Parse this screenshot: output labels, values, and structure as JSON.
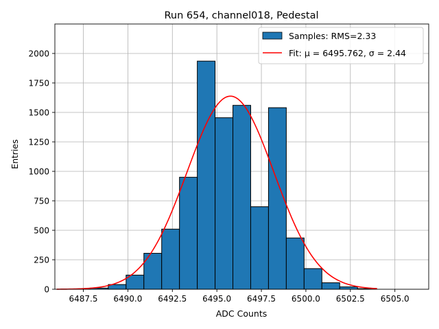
{
  "chart_data": {
    "type": "bar",
    "title": "Run 654, channel018, Pedestal",
    "xlabel": "ADC Counts",
    "ylabel": "Entries",
    "xlim": [
      6485.9,
      6506.9
    ],
    "ylim": [
      0,
      2250
    ],
    "grid": true,
    "legend_position": "top-right",
    "x_ticks": [
      6487.5,
      6490.0,
      6492.5,
      6495.0,
      6497.5,
      6500.0,
      6502.5,
      6505.0
    ],
    "x_tick_labels": [
      "6487.5",
      "6490.0",
      "6492.5",
      "6495.0",
      "6497.5",
      "6500.0",
      "6502.5",
      "6505.0"
    ],
    "y_ticks": [
      0,
      250,
      500,
      750,
      1000,
      1250,
      1500,
      1750,
      2000
    ],
    "y_tick_labels": [
      "0",
      "250",
      "500",
      "750",
      "1000",
      "1250",
      "1500",
      "1750",
      "2000"
    ],
    "bin_width": 1.0,
    "bins": [
      {
        "x": 6486.9,
        "value": 3
      },
      {
        "x": 6487.9,
        "value": 10
      },
      {
        "x": 6488.9,
        "value": 40
      },
      {
        "x": 6489.9,
        "value": 120
      },
      {
        "x": 6490.9,
        "value": 305
      },
      {
        "x": 6491.9,
        "value": 510
      },
      {
        "x": 6492.9,
        "value": 950
      },
      {
        "x": 6493.9,
        "value": 1935
      },
      {
        "x": 6494.9,
        "value": 1455
      },
      {
        "x": 6495.9,
        "value": 1560
      },
      {
        "x": 6496.9,
        "value": 700
      },
      {
        "x": 6497.9,
        "value": 1540
      },
      {
        "x": 6498.9,
        "value": 435
      },
      {
        "x": 6499.9,
        "value": 175
      },
      {
        "x": 6500.9,
        "value": 55
      },
      {
        "x": 6501.9,
        "value": 20
      },
      {
        "x": 6502.9,
        "value": 5
      }
    ],
    "fit": {
      "mu": 6495.762,
      "sigma": 2.44,
      "amplitude": 1638,
      "x_range": [
        6486.0,
        6504.0
      ]
    },
    "legend": {
      "samples_label": "Samples: RMS=2.33",
      "fit_label": "Fit: μ = 6495.762, σ = 2.44"
    },
    "colors": {
      "bar_fill": "#1f77b4",
      "bar_edge": "#000000",
      "fit_line": "#ff0000",
      "grid": "#b0b0b0"
    }
  }
}
